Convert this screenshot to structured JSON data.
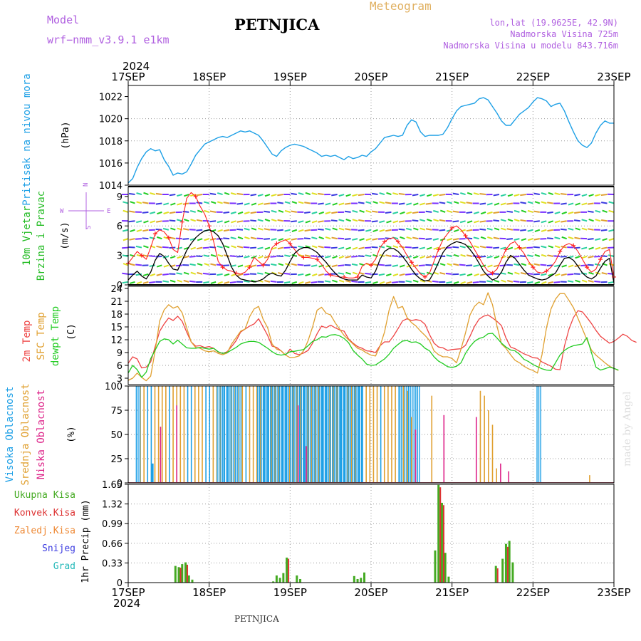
{
  "header": {
    "model_label": "Model",
    "model_name": "wrf−nmm_v3.9.1  e1km",
    "station": "PETNJICA",
    "product": "Meteogram",
    "coords": "lon,lat (19.9625E, 42.9N)",
    "elevation": "Nadmorska Visina 725m",
    "model_elevation": "Nadmorska Visina u modelu 843.716m",
    "footer_station": "PETNJICA",
    "credit": "made by Angel"
  },
  "colors": {
    "pressure": "#1ea0e6",
    "wind_speed": "#000000",
    "gust": "#ff2020",
    "t2m": "#ee4444",
    "sfc": "#e0a030",
    "dewpt": "#22cc22",
    "cloud_high": "#1ea0e6",
    "cloud_mid": "#e0a030",
    "cloud_low": "#dd2288",
    "precip_total": "#44aa22",
    "precip_conv": "#dd3333",
    "label_model": "#b060e0"
  },
  "axes": {
    "year": "2024",
    "date_ticks": [
      "17SEP",
      "18SEP",
      "19SEP",
      "20SEP",
      "21SEP",
      "22SEP",
      "23SEP"
    ]
  },
  "chart_data": [
    {
      "type": "line",
      "panel": "pressure",
      "ylabel": "Pritisak na nivou mora",
      "unit": "(hPa)",
      "ylim": [
        1014,
        1023
      ],
      "yticks": [
        "1014",
        "1016",
        "1018",
        "1020",
        "1022"
      ],
      "series": [
        {
          "values": [
            1014.2,
            1014.6,
            1015.6,
            1016.4,
            1017.0,
            1017.3,
            1017.1,
            1017.2,
            1016.3,
            1015.7,
            1014.9,
            1015.1,
            1015.0,
            1015.2,
            1015.9,
            1016.7,
            1017.2,
            1017.7,
            1017.9,
            1018.1,
            1018.3,
            1018.4,
            1018.3,
            1018.5,
            1018.7,
            1018.9,
            1018.8,
            1018.9,
            1018.7,
            1018.5,
            1018.0,
            1017.4,
            1016.8,
            1016.6,
            1017.1,
            1017.4,
            1017.6,
            1017.7,
            1017.6,
            1017.5,
            1017.3,
            1017.1,
            1016.9,
            1016.6,
            1016.7,
            1016.6,
            1016.7,
            1016.5,
            1016.3,
            1016.6,
            1016.4,
            1016.5,
            1016.7,
            1016.6,
            1017.0,
            1017.3,
            1017.8,
            1018.3,
            1018.4,
            1018.5,
            1018.4,
            1018.5,
            1019.4,
            1019.9,
            1019.7,
            1018.8,
            1018.4,
            1018.5,
            1018.5,
            1018.5,
            1018.6,
            1019.2,
            1020.0,
            1020.7,
            1021.1,
            1021.2,
            1021.3,
            1021.4,
            1021.8,
            1021.9,
            1021.7,
            1021.1,
            1020.5,
            1019.8,
            1019.4,
            1019.4,
            1019.9,
            1020.4,
            1020.7,
            1021.0,
            1021.5,
            1021.9,
            1021.8,
            1021.6,
            1021.1,
            1021.3,
            1021.4,
            1020.7,
            1019.7,
            1018.8,
            1018.0,
            1017.6,
            1017.4,
            1017.8,
            1018.7,
            1019.4,
            1019.8,
            1019.6,
            1019.6
          ]
        }
      ]
    },
    {
      "type": "line",
      "panel": "wind",
      "ylabel": "10m Vjetar Brzina i Pravac",
      "unit": "(m/s)",
      "ylim": [
        0,
        10
      ],
      "yticks": [
        "0",
        "3",
        "6",
        "9"
      ],
      "compass": {
        "w": "W",
        "e": "E",
        "n": "N",
        "s": "S"
      },
      "series": [
        {
          "values": [
            0.5,
            1.0,
            1.4,
            0.9,
            0.6,
            1.3,
            2.5,
            3.2,
            2.9,
            2.2,
            1.6,
            1.5,
            2.5,
            3.5,
            4.2,
            4.8,
            5.2,
            5.5,
            5.6,
            5.4,
            5.0,
            4.2,
            3.0,
            1.8,
            1.0,
            0.6,
            0.5,
            0.4,
            0.3,
            0.4,
            0.6,
            1.0,
            1.2,
            1.0,
            0.9,
            1.5,
            2.4,
            3.2,
            3.6,
            3.8,
            3.8,
            3.6,
            3.3,
            2.8,
            2.3,
            1.7,
            1.2,
            0.8,
            0.6,
            0.5,
            0.5,
            0.5,
            1.0,
            0.8,
            0.7,
            1.4,
            2.6,
            3.4,
            3.7,
            3.7,
            3.4,
            2.9,
            2.3,
            1.6,
            1.0,
            0.6,
            0.4,
            0.5,
            1.3,
            2.3,
            3.3,
            3.9,
            4.2,
            4.4,
            4.3,
            4.1,
            3.6,
            3.0,
            2.2,
            1.4,
            0.9,
            0.5,
            0.7,
            1.3,
            2.3,
            3.0,
            2.7,
            2.1,
            1.5,
            1.0,
            0.8,
            0.6,
            0.5,
            0.6,
            0.9,
            1.2,
            2.0,
            2.7,
            2.8,
            2.5,
            1.9,
            1.2,
            0.8,
            0.6,
            0.9,
            1.7,
            2.4,
            2.7,
            0.2
          ]
        },
        {
          "values": [
            2.2,
            2.8,
            3.4,
            3.0,
            2.6,
            3.8,
            5.2,
            5.6,
            5.4,
            4.8,
            3.6,
            3.3,
            6.4,
            8.8,
            9.4,
            9.0,
            8.0,
            7.2,
            6.0,
            4.4,
            2.4,
            1.8,
            1.5,
            1.4,
            1.2,
            1.1,
            1.3,
            1.8,
            2.8,
            2.4,
            2.0,
            2.6,
            3.8,
            4.2,
            4.4,
            4.6,
            4.2,
            3.6,
            3.0,
            2.8,
            2.8,
            2.7,
            2.6,
            2.1,
            1.4,
            1.0,
            0.9,
            0.8,
            0.8,
            0.7,
            0.7,
            0.8,
            1.9,
            2.2,
            2.0,
            2.6,
            3.8,
            4.4,
            4.7,
            4.8,
            4.4,
            3.8,
            3.0,
            2.3,
            1.7,
            1.1,
            0.8,
            1.2,
            2.4,
            3.6,
            4.6,
            5.2,
            5.8,
            6.0,
            5.6,
            5.0,
            4.4,
            3.6,
            2.8,
            2.0,
            1.4,
            1.2,
            1.6,
            2.6,
            3.6,
            4.2,
            4.4,
            3.8,
            3.2,
            2.4,
            1.8,
            1.3,
            1.2,
            1.4,
            1.8,
            2.4,
            3.4,
            4.0,
            4.2,
            4.0,
            3.4,
            2.6,
            1.8,
            1.3,
            1.6,
            2.6,
            3.4,
            3.6,
            0.8
          ]
        }
      ]
    },
    {
      "type": "line",
      "panel": "temperature",
      "ylabel": "2m Temp / SFC Temp / dewpt Temp",
      "unit": "(C)",
      "ylim": [
        1.5,
        24.5
      ],
      "yticks": [
        "3",
        "6",
        "9",
        "12",
        "15",
        "18",
        "21",
        "24"
      ],
      "series": [
        {
          "name": "2m Temp",
          "values": [
            6.5,
            8.0,
            7.5,
            5.4,
            5.6,
            6.8,
            10.4,
            14.0,
            15.7,
            17.1,
            16.5,
            17.5,
            16.3,
            13.8,
            11.5,
            10.5,
            10.6,
            10.2,
            10.4,
            10.0,
            9.1,
            8.8,
            9.2,
            10.4,
            11.8,
            13.8,
            14.5,
            15.2,
            15.7,
            16.9,
            15.0,
            13.0,
            10.5,
            10.2,
            9.4,
            8.4,
            9.8,
            8.8,
            8.5,
            8.9,
            9.5,
            11.2,
            13.4,
            15.2,
            14.8,
            15.4,
            14.8,
            14.3,
            14.0,
            12.2,
            11.2,
            10.4,
            10.0,
            9.4,
            9.3,
            9.0,
            10.6,
            11.5,
            11.5,
            12.9,
            14.6,
            16.4,
            16.9,
            16.5,
            16.7,
            16.5,
            15.6,
            13.2,
            11.2,
            10.3,
            10.1,
            9.5,
            9.7,
            9.8,
            9.9,
            10.7,
            12.8,
            15.1,
            16.8,
            17.5,
            17.8,
            17.1,
            16.3,
            15.3,
            12.4,
            10.3,
            9.9,
            9.3,
            8.7,
            8.3,
            7.8,
            7.7,
            6.8,
            6.3,
            5.8,
            5.1,
            5.0,
            10.5,
            14.5,
            17.2,
            18.8,
            18.5,
            17.2,
            15.8,
            14.2,
            12.8,
            12.0,
            11.2,
            11.6,
            12.4,
            13.3,
            12.8,
            11.8,
            11.4
          ]
        },
        {
          "name": "SFC Temp",
          "values": [
            2.5,
            3.0,
            4.2,
            3.2,
            2.4,
            3.5,
            9.5,
            16.4,
            19.0,
            20.2,
            19.4,
            19.8,
            18.3,
            14.8,
            11.5,
            10.2,
            10.0,
            9.4,
            9.2,
            9.4,
            8.8,
            8.5,
            8.9,
            11.0,
            12.5,
            14.0,
            14.5,
            17.4,
            19.2,
            19.8,
            16.8,
            14.8,
            11.0,
            9.8,
            9.4,
            8.4,
            7.8,
            7.9,
            8.2,
            9.4,
            11.8,
            15.0,
            18.9,
            19.6,
            18.2,
            17.8,
            16.0,
            14.5,
            13.0,
            12.0,
            11.0,
            10.0,
            9.6,
            8.9,
            8.4,
            8.2,
            10.5,
            13.8,
            18.9,
            22.1,
            19.4,
            19.8,
            17.2,
            16.0,
            15.2,
            14.0,
            13.0,
            11.8,
            9.4,
            8.5,
            8.0,
            8.0,
            7.6,
            6.6,
            9.8,
            13.6,
            17.8,
            19.8,
            20.8,
            20.2,
            23.0,
            20.2,
            15.2,
            11.0,
            10.0,
            8.5,
            7.2,
            6.6,
            5.8,
            5.2,
            4.8,
            4.2,
            8.5,
            14.8,
            19.2,
            21.5,
            22.8,
            22.8,
            21.2,
            19.5,
            17.0,
            14.5,
            12.0,
            9.6,
            8.4,
            7.5,
            6.6,
            5.8,
            5.3,
            4.8
          ]
        },
        {
          "name": "dewpt Temp",
          "values": [
            4.2,
            6.0,
            5.0,
            3.2,
            4.4,
            7.6,
            9.6,
            11.6,
            12.2,
            12.0,
            11.0,
            11.9,
            11.0,
            10.1,
            10.0,
            10.0,
            10.2,
            10.0,
            9.8,
            10.0,
            9.2,
            8.8,
            9.0,
            9.6,
            10.2,
            11.0,
            11.4,
            11.6,
            11.6,
            11.4,
            10.7,
            10.0,
            9.2,
            8.6,
            8.4,
            8.6,
            9.2,
            9.3,
            9.5,
            9.7,
            10.6,
            11.6,
            12.0,
            12.7,
            12.6,
            13.1,
            13.2,
            12.9,
            12.3,
            11.3,
            9.5,
            8.4,
            7.5,
            6.3,
            6.0,
            6.1,
            6.8,
            7.5,
            8.6,
            10.0,
            10.9,
            11.7,
            11.8,
            11.4,
            11.5,
            11.0,
            10.0,
            9.4,
            8.0,
            7.0,
            6.4,
            5.7,
            5.5,
            5.8,
            6.6,
            8.8,
            10.4,
            11.6,
            12.3,
            12.6,
            13.4,
            13.5,
            12.4,
            11.2,
            10.3,
            9.6,
            9.4,
            8.6,
            7.4,
            6.9,
            6.2,
            5.7,
            5.2,
            4.9,
            4.8,
            6.6,
            8.4,
            9.5,
            10.2,
            10.6,
            10.8,
            11.0,
            12.5,
            9.0,
            5.6,
            4.9,
            5.2,
            5.6,
            5.3,
            4.9
          ]
        }
      ]
    },
    {
      "type": "bar",
      "panel": "clouds",
      "ylabel": "Visoka Oblacnost / Srednja Oblacnost / Niska Oblacnost",
      "unit": "(%)",
      "ylim": [
        0,
        100
      ],
      "yticks": [
        "0",
        "25",
        "50",
        "75",
        "100"
      ],
      "series": [
        {
          "name": "Visoka Oblacnost",
          "mode": "full-spans",
          "spans": [
            [
              2,
              3
            ],
            [
              22,
              28
            ],
            [
              32,
              58
            ],
            [
              67,
              72
            ],
            [
              101,
              102
            ]
          ],
          "extras": [
            [
              6,
              20
            ]
          ]
        },
        {
          "name": "Srednja Oblacnost",
          "mode": "stripes",
          "spans": [
            [
              3,
              67
            ]
          ],
          "extras": [
            [
              68,
              100
            ],
            [
              69,
              95
            ],
            [
              70,
              68
            ],
            [
              75,
              90
            ],
            [
              87,
              95
            ],
            [
              88,
              90
            ],
            [
              89,
              75
            ],
            [
              90,
              60
            ],
            [
              91,
              15
            ],
            [
              114,
              8
            ]
          ]
        },
        {
          "name": "Niska Oblacnost",
          "mode": "pulses",
          "values": [
            [
              8,
              58
            ],
            [
              12,
              80
            ],
            [
              42,
              80
            ],
            [
              44,
              38
            ],
            [
              71,
              55
            ],
            [
              78,
              70
            ],
            [
              86,
              68
            ],
            [
              92,
              20
            ],
            [
              94,
              12
            ]
          ]
        }
      ]
    },
    {
      "type": "bar",
      "panel": "precip",
      "ylabel": "1hr Precip",
      "unit": "(mm)",
      "ylim": [
        0,
        1.65
      ],
      "yticks": [
        "0",
        "0.33",
        "0.66",
        "0.99",
        "1.32",
        "1.65"
      ],
      "legend": [
        "Ukupna Kisa",
        "Konvek.Kisa",
        "Zaledj.Kisa",
        "Snijeg",
        "Grad"
      ],
      "legend_colors": [
        "#44aa22",
        "#dd3333",
        "#ee8833",
        "#3a3ae0",
        "#22b8b8"
      ],
      "series": [
        {
          "name": "Ukupna Kisa",
          "values": [
            [
              14,
              0.28
            ],
            [
              15,
              0.26
            ],
            [
              16,
              0.31
            ],
            [
              17,
              0.34
            ],
            [
              18,
              0.12
            ],
            [
              19,
              0.05
            ],
            [
              43,
              0.02
            ],
            [
              44,
              0.12
            ],
            [
              45,
              0.08
            ],
            [
              46,
              0.16
            ],
            [
              47,
              0.42
            ],
            [
              50,
              0.12
            ],
            [
              51,
              0.06
            ],
            [
              67,
              0.11
            ],
            [
              68,
              0.06
            ],
            [
              69,
              0.08
            ],
            [
              70,
              0.17
            ],
            [
              91,
              0.54
            ],
            [
              92,
              1.64
            ],
            [
              93,
              1.34
            ],
            [
              94,
              0.5
            ],
            [
              95,
              0.1
            ],
            [
              109,
              0.28
            ],
            [
              111,
              0.4
            ],
            [
              112,
              0.65
            ],
            [
              113,
              0.7
            ],
            [
              114,
              0.34
            ]
          ]
        },
        {
          "name": "Konvek.Kisa",
          "values": [
            [
              15,
              0.25
            ],
            [
              17,
              0.3
            ],
            [
              47,
              0.4
            ],
            [
              92,
              1.6
            ],
            [
              93,
              1.3
            ],
            [
              109,
              0.24
            ],
            [
              112,
              0.6
            ]
          ]
        }
      ]
    }
  ]
}
